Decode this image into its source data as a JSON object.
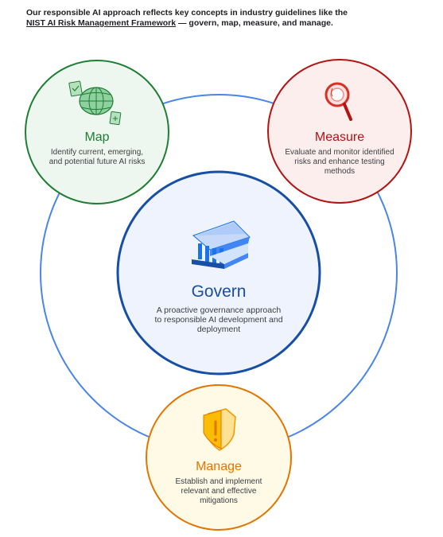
{
  "intro": {
    "line1": "Our responsible AI approach reflects key concepts in industry guidelines like the",
    "link": "NIST AI Risk Management Framework",
    "line2_rest": " — govern, map, measure, and manage."
  },
  "nodes": {
    "map": {
      "title": "Map",
      "description": "Identify current, emerging, and potential future AI risks",
      "color": "#1e7e34",
      "icon": "globe-icon"
    },
    "measure": {
      "title": "Measure",
      "description": "Evaluate and monitor identified risks and enhance testing methods",
      "color": "#b31412",
      "icon": "magnifier-icon"
    },
    "govern": {
      "title": "Govern",
      "description": "A proactive governance approach to responsible AI development and deployment",
      "color": "#174ea6",
      "icon": "institution-icon"
    },
    "manage": {
      "title": "Manage",
      "description": "Establish and implement relevant and effective mitigations",
      "color": "#e37400",
      "icon": "shield-warning-icon"
    }
  },
  "colors": {
    "ring": "#4a86e8",
    "map_fill": "#eef7ef",
    "measure_fill": "#fdeeee",
    "govern_fill": "#eef3fd",
    "manage_fill": "#fefae6"
  }
}
